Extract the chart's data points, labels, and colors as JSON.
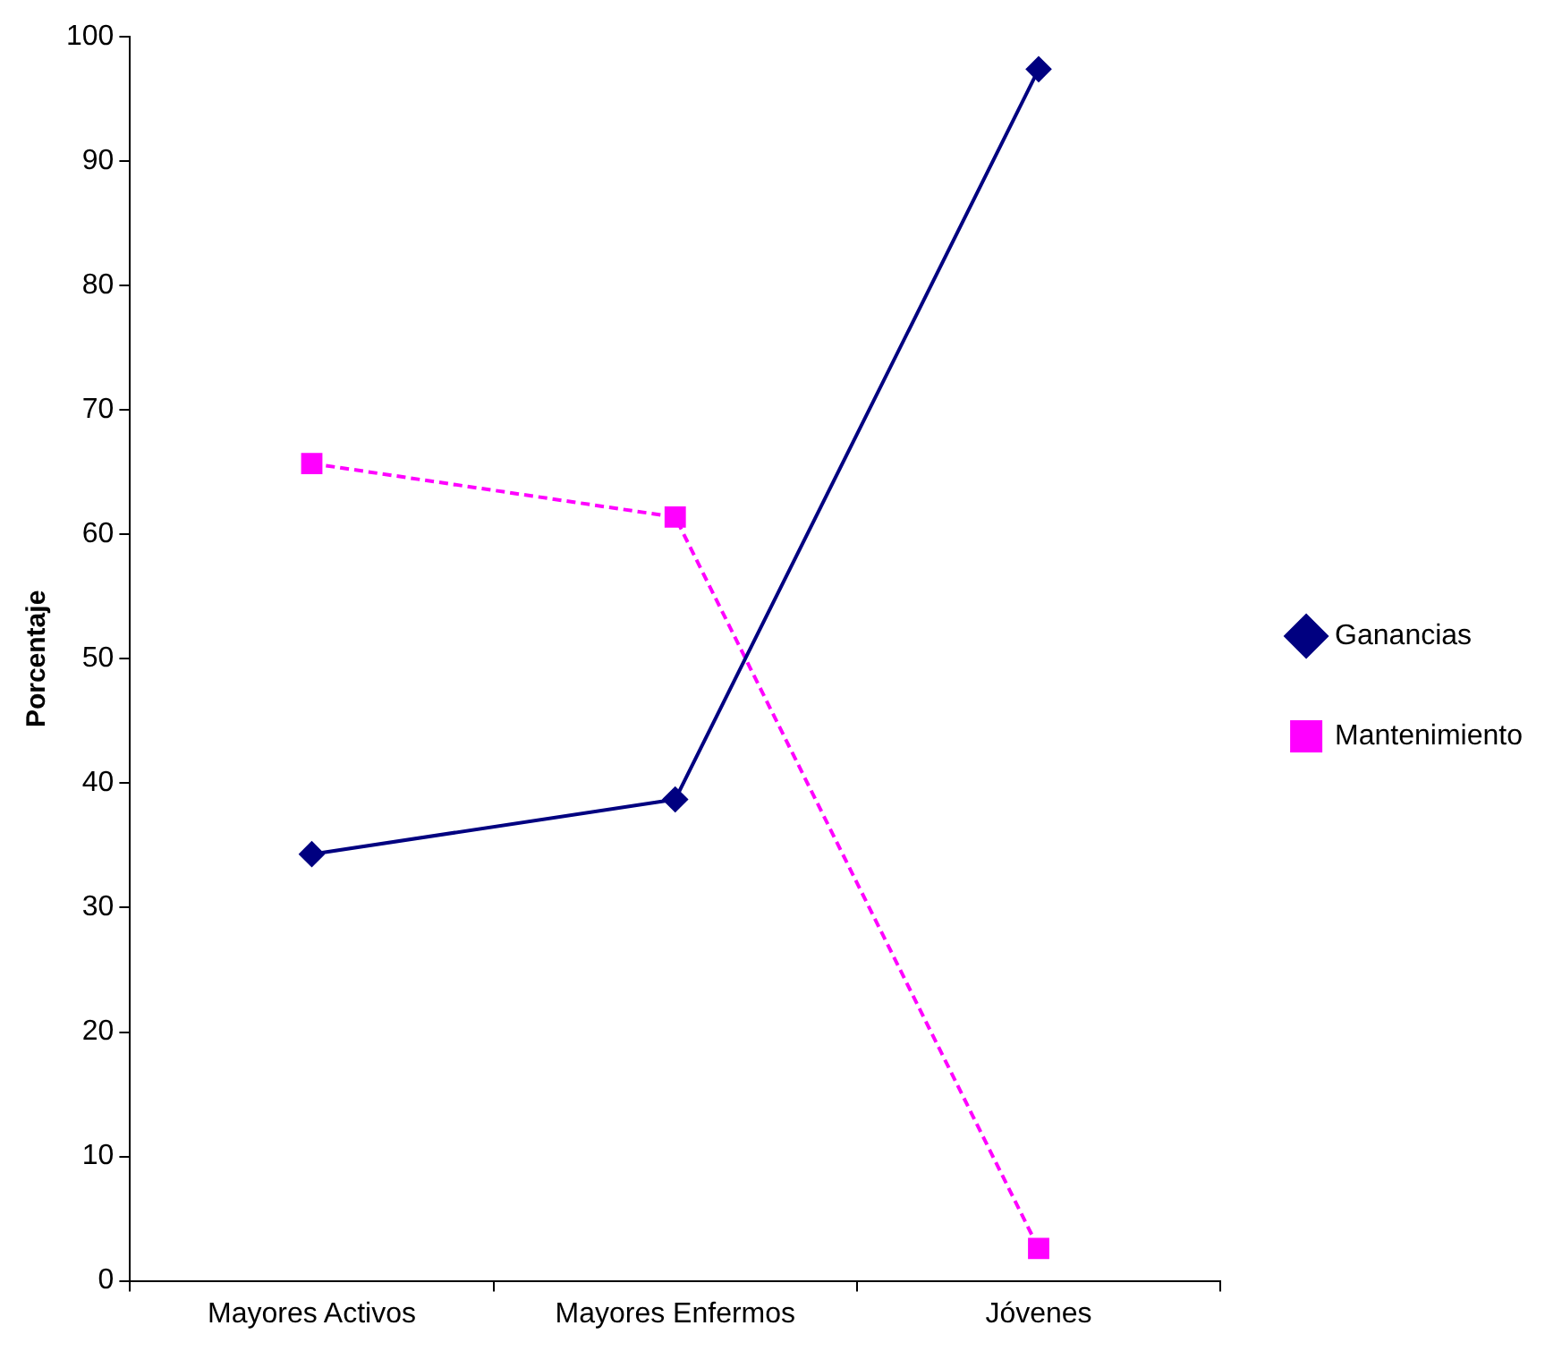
{
  "chart_data": {
    "type": "line",
    "ylabel": "Porcentaje",
    "categories": [
      "Mayores Activos",
      "Mayores Enfermos",
      "Jóvenes"
    ],
    "series": [
      {
        "name": "Ganancias",
        "color": "#000080",
        "values": [
          34.3,
          38.7,
          97.4
        ],
        "marker": "diamond",
        "line_style": "solid"
      },
      {
        "name": "Mantenimiento",
        "color": "#ff00ff",
        "values": [
          65.7,
          61.4,
          2.6
        ],
        "marker": "square",
        "line_style": "dashed"
      }
    ],
    "ylim": [
      0,
      100
    ],
    "yticks": [
      0,
      10,
      20,
      30,
      40,
      50,
      60,
      70,
      80,
      90,
      100
    ],
    "grid": false,
    "legend": "right"
  }
}
